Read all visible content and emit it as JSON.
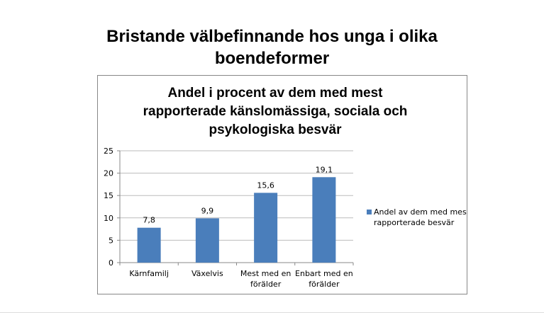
{
  "slide": {
    "title_line1": "Bristande välbefinnande hos unga i olika",
    "title_line2": "boendeformer"
  },
  "chart_data": {
    "type": "bar",
    "title": [
      "Andel i procent av dem med mest",
      "rapporterade känslomässiga, sociala och",
      "psykologiska besvär"
    ],
    "categories": [
      [
        "Kärnfamilj"
      ],
      [
        "Växelvis"
      ],
      [
        "Mest med en",
        "förälder"
      ],
      [
        "Enbart med en",
        "förälder"
      ]
    ],
    "series": [
      {
        "name": "Andel av dem med mest rapporterade besvär",
        "legend_lines": [
          "Andel av dem med mest",
          "rapporterade besvär"
        ],
        "values": [
          7.8,
          9.9,
          15.6,
          19.1
        ],
        "labels": [
          "7,8",
          "9,9",
          "15,6",
          "19,1"
        ],
        "color": "#4a7ebb"
      }
    ],
    "ylim": [
      0,
      25
    ],
    "yticks": [
      0,
      5,
      10,
      15,
      20,
      25
    ],
    "grid": true,
    "legend": "right",
    "xlabel": "",
    "ylabel": ""
  }
}
